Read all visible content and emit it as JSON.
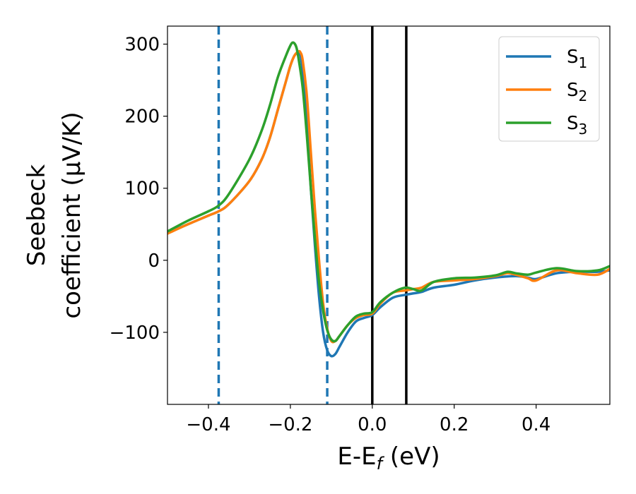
{
  "chart_data": {
    "type": "line",
    "xlabel": "E-E",
    "xlabel_sub": "f",
    "xlabel_unit": " (eV)",
    "ylabel_line1": "Seebeck",
    "ylabel_line2": "coefficient  (μV/K)",
    "xlim": [
      -0.5,
      0.58
    ],
    "ylim": [
      -200,
      325
    ],
    "xticks": [
      -0.4,
      -0.2,
      0.0,
      0.2,
      0.4
    ],
    "xtick_labels": [
      "−0.4",
      "−0.2",
      "0.0",
      "0.2",
      "0.4"
    ],
    "yticks": [
      -100,
      0,
      100,
      200,
      300
    ],
    "ytick_labels": [
      "−100",
      "0",
      "100",
      "200",
      "300"
    ],
    "grid": false,
    "legend_position": "top-right",
    "vlines": [
      {
        "x": -0.375,
        "style": "dashed",
        "color": "#1f77b4"
      },
      {
        "x": -0.11,
        "style": "dashed",
        "color": "#1f77b4"
      },
      {
        "x": 0.0,
        "style": "solid",
        "color": "#000000"
      },
      {
        "x": 0.083,
        "style": "solid",
        "color": "#000000"
      }
    ],
    "series": [
      {
        "name": "S",
        "name_sub": "1",
        "color": "#1f77b4",
        "x": [
          -0.5,
          -0.45,
          -0.4,
          -0.375,
          -0.35,
          -0.3,
          -0.27,
          -0.25,
          -0.23,
          -0.21,
          -0.2,
          -0.19,
          -0.18,
          -0.175,
          -0.17,
          -0.16,
          -0.15,
          -0.14,
          -0.13,
          -0.12,
          -0.11,
          -0.1,
          -0.09,
          -0.08,
          -0.06,
          -0.04,
          -0.02,
          0.0,
          0.02,
          0.05,
          0.08,
          0.1,
          0.12,
          0.15,
          0.2,
          0.25,
          0.3,
          0.35,
          0.38,
          0.4,
          0.45,
          0.5,
          0.55,
          0.58
        ],
        "y": [
          38,
          50,
          62,
          68,
          78,
          110,
          140,
          170,
          210,
          250,
          270,
          284,
          288,
          284,
          262,
          190,
          100,
          20,
          -50,
          -100,
          -125,
          -133,
          -130,
          -120,
          -100,
          -85,
          -80,
          -76,
          -65,
          -52,
          -48,
          -46,
          -44,
          -38,
          -34,
          -28,
          -24,
          -22,
          -24,
          -26,
          -18,
          -16,
          -16,
          -14
        ]
      },
      {
        "name": "S",
        "name_sub": "2",
        "color": "#ff7f0e",
        "x": [
          -0.5,
          -0.45,
          -0.4,
          -0.375,
          -0.35,
          -0.3,
          -0.27,
          -0.25,
          -0.23,
          -0.21,
          -0.2,
          -0.19,
          -0.18,
          -0.175,
          -0.17,
          -0.16,
          -0.15,
          -0.14,
          -0.13,
          -0.12,
          -0.11,
          -0.1,
          -0.09,
          -0.08,
          -0.06,
          -0.04,
          -0.02,
          0.0,
          0.02,
          0.05,
          0.08,
          0.1,
          0.12,
          0.15,
          0.2,
          0.25,
          0.3,
          0.33,
          0.35,
          0.38,
          0.4,
          0.45,
          0.5,
          0.55,
          0.58
        ],
        "y": [
          37,
          50,
          62,
          68,
          78,
          110,
          140,
          170,
          210,
          250,
          270,
          284,
          290,
          288,
          278,
          230,
          150,
          70,
          0,
          -60,
          -95,
          -112,
          -112,
          -105,
          -90,
          -80,
          -76,
          -74,
          -60,
          -45,
          -42,
          -40,
          -38,
          -30,
          -28,
          -26,
          -22,
          -18,
          -20,
          -25,
          -28,
          -14,
          -18,
          -20,
          -12
        ]
      },
      {
        "name": "S",
        "name_sub": "3",
        "color": "#2ca02c",
        "x": [
          -0.5,
          -0.45,
          -0.4,
          -0.375,
          -0.35,
          -0.3,
          -0.27,
          -0.25,
          -0.23,
          -0.21,
          -0.2,
          -0.195,
          -0.19,
          -0.185,
          -0.18,
          -0.17,
          -0.16,
          -0.15,
          -0.14,
          -0.13,
          -0.12,
          -0.11,
          -0.1,
          -0.09,
          -0.08,
          -0.06,
          -0.04,
          -0.02,
          0.0,
          0.02,
          0.05,
          0.08,
          0.1,
          0.12,
          0.15,
          0.2,
          0.25,
          0.3,
          0.33,
          0.35,
          0.38,
          0.4,
          0.45,
          0.5,
          0.55,
          0.58
        ],
        "y": [
          40,
          55,
          68,
          76,
          92,
          140,
          180,
          215,
          255,
          285,
          298,
          302,
          301,
          295,
          280,
          240,
          175,
          100,
          30,
          -30,
          -70,
          -97,
          -110,
          -112,
          -105,
          -90,
          -78,
          -74,
          -72,
          -58,
          -45,
          -38,
          -40,
          -42,
          -30,
          -25,
          -24,
          -21,
          -16,
          -18,
          -20,
          -17,
          -11,
          -15,
          -14,
          -8
        ]
      }
    ]
  }
}
